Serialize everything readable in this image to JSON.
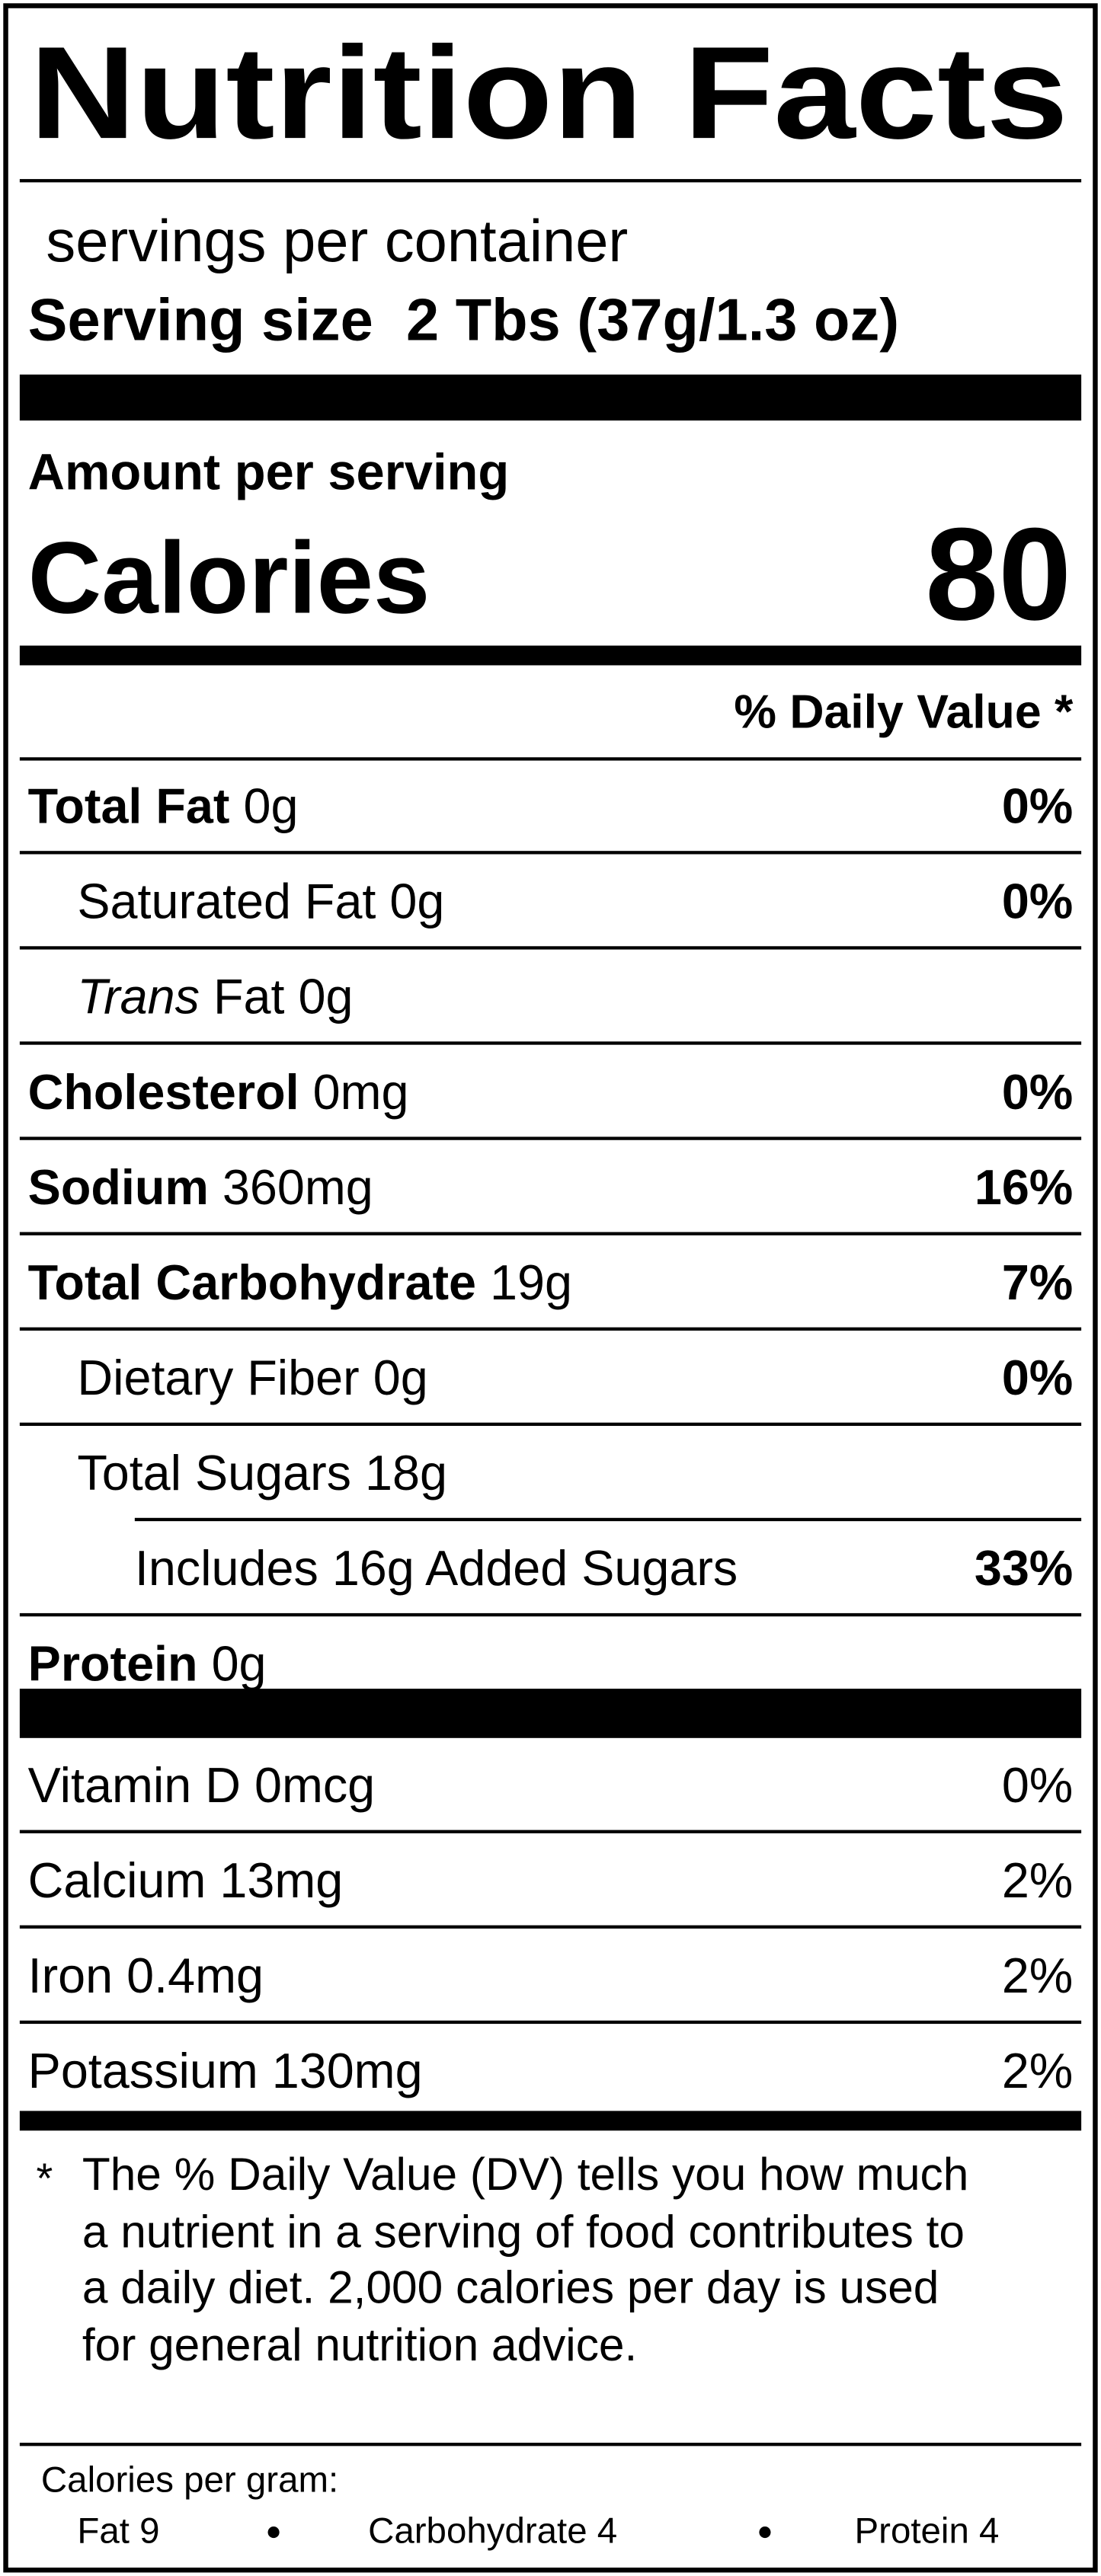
{
  "title": "Nutrition Facts",
  "servings": "servings per container",
  "serving_size": {
    "label": "Serving size",
    "value": "2 Tbs (37g/1.3 oz)"
  },
  "amount_per_serving": "Amount per serving",
  "calories": {
    "label": "Calories",
    "value": "80"
  },
  "dv_header": "% Daily Value *",
  "nutrients": [
    {
      "name": "Total Fat",
      "amount": "0g",
      "dv": "0%",
      "sub": [
        {
          "name": "Saturated Fat",
          "amount": "0g",
          "dv": "0%"
        },
        {
          "name_italic": "Trans",
          "name": "Fat",
          "amount": "0g"
        }
      ]
    },
    {
      "name": "Cholesterol",
      "amount": "0mg",
      "dv": "0%"
    },
    {
      "name": "Sodium",
      "amount": "360mg",
      "dv": "16%"
    },
    {
      "name": "Total Carbohydrate",
      "amount": "19g",
      "dv": "7%",
      "sub": [
        {
          "name": "Dietary Fiber",
          "amount": "0g",
          "dv": "0%"
        },
        {
          "name": "Total Sugars",
          "amount": "18g",
          "sub": [
            {
              "name": "Includes 16g Added Sugars",
              "dv": "33%"
            }
          ]
        }
      ]
    },
    {
      "name": "Protein",
      "amount": "0g"
    }
  ],
  "vitamins": [
    {
      "name": "Vitamin D",
      "amount": "0mcg",
      "dv": "0%"
    },
    {
      "name": "Calcium",
      "amount": "13mg",
      "dv": "2%"
    },
    {
      "name": "Iron",
      "amount": "0.4mg",
      "dv": "2%"
    },
    {
      "name": "Potassium",
      "amount": "130mg",
      "dv": "2%"
    }
  ],
  "footnote": {
    "marker": "*",
    "lines": [
      "The % Daily Value (DV) tells you how much",
      "a nutrient in a serving of food contributes to",
      "a daily diet. 2,000 calories per day is used",
      "for general nutrition advice."
    ]
  },
  "calories_per_gram": {
    "label": "Calories per gram:",
    "items": [
      "Fat 9",
      "Carbohydrate 4",
      "Protein 4"
    ]
  }
}
